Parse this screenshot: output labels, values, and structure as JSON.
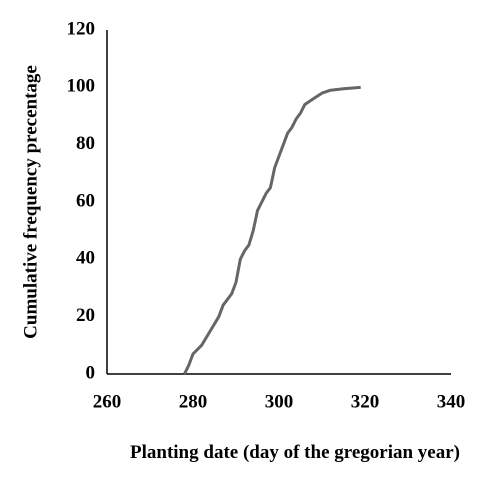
{
  "chart_data": {
    "type": "line",
    "x_label": "Planting date (day of the gregorian year)",
    "y_label": "Cumulative frequency precentage",
    "x": [
      278,
      279,
      280,
      282,
      284,
      286,
      287,
      289,
      290,
      291,
      292,
      293,
      294,
      295,
      296,
      297,
      298,
      299,
      300,
      301,
      302,
      303,
      304,
      305,
      306,
      308,
      310,
      312,
      315,
      319
    ],
    "series": [
      {
        "name": "Cumulative frequency",
        "color": "#666666",
        "values": [
          0,
          3,
          7,
          10,
          15,
          20,
          24,
          28,
          32,
          40,
          43,
          45,
          50,
          57,
          60,
          63,
          65,
          72,
          76,
          80,
          84,
          86,
          89,
          91,
          94,
          96,
          98,
          99,
          99.5,
          100
        ]
      }
    ],
    "xlim": [
      260,
      340
    ],
    "xticks": [
      260,
      280,
      300,
      320,
      340
    ],
    "ylim": [
      0,
      120
    ],
    "yticks": [
      0,
      20,
      40,
      60,
      80,
      100,
      120
    ],
    "grid": false
  }
}
